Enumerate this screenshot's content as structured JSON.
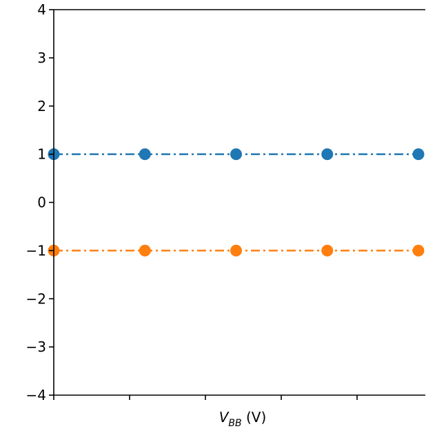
{
  "chart_data": {
    "type": "line",
    "title": "",
    "xlabel": "V",
    "xlabel_subscript": "BB",
    "xlabel_unit": " (V)",
    "ylabel": "",
    "ylim": [
      -4,
      4
    ],
    "yticks": [
      4,
      3,
      2,
      1,
      0,
      -1,
      -2,
      -3,
      -4
    ],
    "ytick_labels": [
      "4",
      "3",
      "2",
      "1",
      "0",
      "−1",
      "−2",
      "−3",
      "−4"
    ],
    "x_tick_count": 6,
    "x": [
      0,
      1,
      2,
      3,
      4
    ],
    "x_range": [
      0,
      4
    ],
    "grid": false,
    "series": [
      {
        "values": [
          1,
          1,
          1,
          1,
          1
        ],
        "color": "#1f77b4",
        "linestyle": "dashdot",
        "marker": "circle"
      },
      {
        "values": [
          -1,
          -1,
          -1,
          -1,
          -1
        ],
        "color": "#ff7f0e",
        "linestyle": "dashdot",
        "marker": "circle"
      }
    ]
  }
}
